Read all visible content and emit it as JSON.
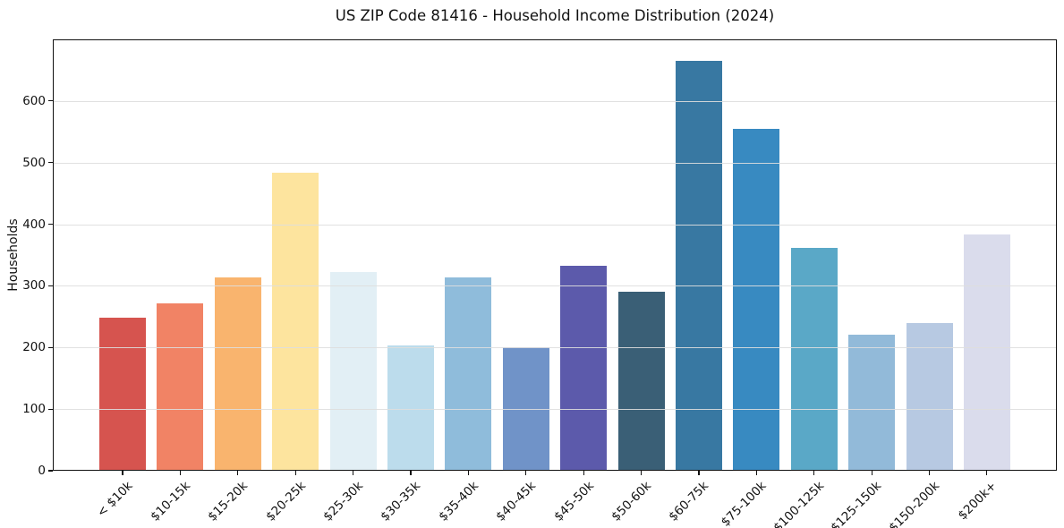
{
  "chart_data": {
    "type": "bar",
    "title": "US ZIP Code 81416 - Household Income Distribution (2024)",
    "xlabel": "",
    "ylabel": "Households",
    "categories": [
      "< $10k",
      "$10-15k",
      "$15-20k",
      "$20-25k",
      "$25-30k",
      "$30-35k",
      "$35-40k",
      "$40-45k",
      "$45-50k",
      "$50-60k",
      "$60-75k",
      "$75-100k",
      "$100-125k",
      "$125-150k",
      "$150-200k",
      "$200k+"
    ],
    "values": [
      248,
      271,
      313,
      484,
      323,
      203,
      314,
      200,
      332,
      290,
      665,
      555,
      362,
      221,
      240,
      384
    ],
    "bar_colors": [
      "#d6544f",
      "#f18365",
      "#f9b46e",
      "#fde49e",
      "#e2eff5",
      "#bcdcec",
      "#8fbcdb",
      "#7093c8",
      "#5c5aab",
      "#3a5f76",
      "#3878a2",
      "#388ac1",
      "#5aa8c7",
      "#92bad9",
      "#b7c9e2",
      "#dadcec"
    ],
    "ylim": [
      0,
      700
    ],
    "yticks": [
      0,
      100,
      200,
      300,
      400,
      500,
      600
    ],
    "grid": "horizontal",
    "legend": "none",
    "background": "#ffffff"
  }
}
